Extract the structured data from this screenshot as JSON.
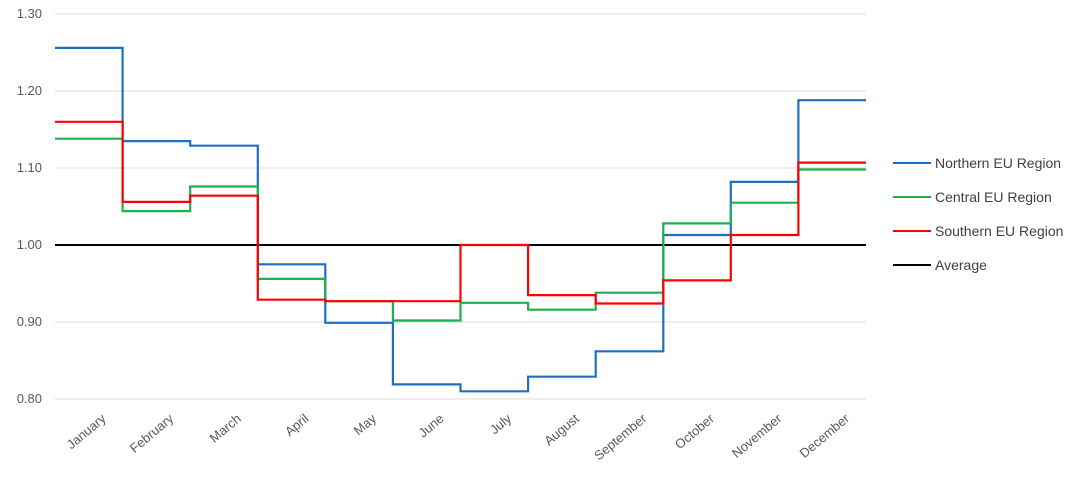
{
  "chart_data": {
    "type": "line",
    "step": true,
    "categories": [
      "January",
      "February",
      "March",
      "April",
      "May",
      "June",
      "July",
      "August",
      "September",
      "October",
      "November",
      "December"
    ],
    "ylim": [
      0.8,
      1.3
    ],
    "yticks": [
      "0.80",
      "0.90",
      "1.00",
      "1.10",
      "1.20",
      "1.30"
    ],
    "grid": true,
    "legend_position": "right",
    "series": [
      {
        "name": "Northern EU Region",
        "color": "#1f6fc0",
        "values": [
          1.256,
          1.135,
          1.129,
          0.975,
          0.899,
          0.819,
          0.81,
          0.829,
          0.862,
          1.013,
          1.082,
          1.188
        ]
      },
      {
        "name": "Central EU Region",
        "color": "#1db14b",
        "values": [
          1.138,
          1.044,
          1.076,
          0.956,
          0.927,
          0.902,
          0.925,
          0.916,
          0.938,
          1.028,
          1.055,
          1.098
        ]
      },
      {
        "name": "Southern EU Region",
        "color": "#ff0000",
        "values": [
          1.16,
          1.056,
          1.064,
          0.929,
          0.927,
          0.927,
          1.0,
          0.935,
          0.924,
          0.954,
          1.013,
          1.107
        ]
      },
      {
        "name": "Average",
        "color": "#000000",
        "values": [
          1,
          1,
          1,
          1,
          1,
          1,
          1,
          1,
          1,
          1,
          1,
          1
        ]
      }
    ]
  }
}
